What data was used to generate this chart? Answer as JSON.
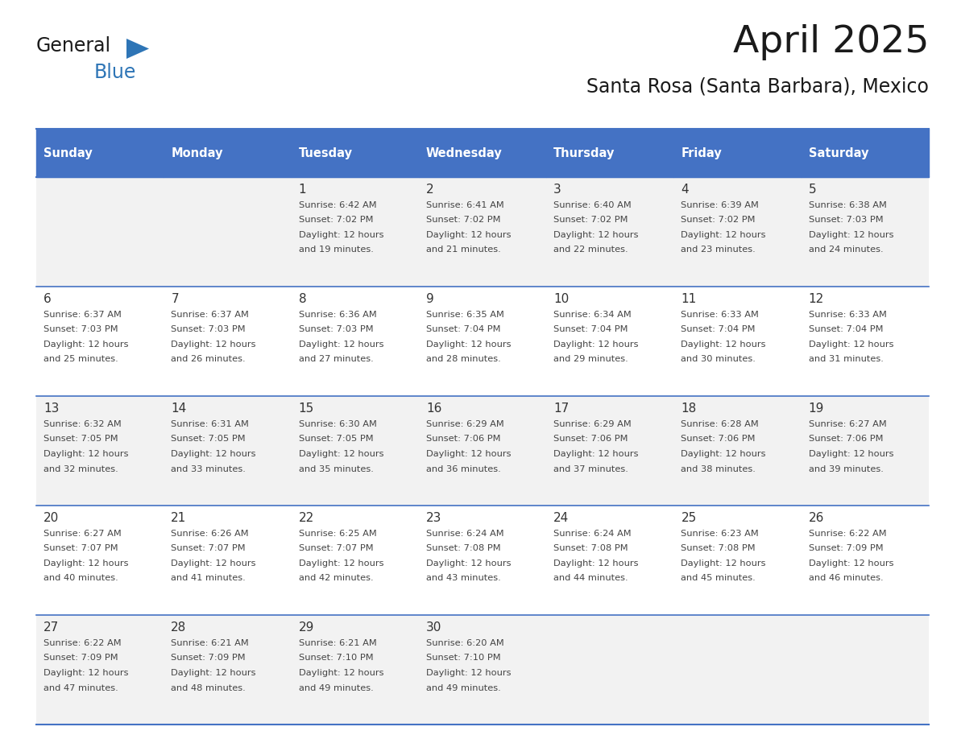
{
  "title": "April 2025",
  "subtitle": "Santa Rosa (Santa Barbara), Mexico",
  "header_bg_color": "#4472C4",
  "header_text_color": "#FFFFFF",
  "cell_bg_even": "#F2F2F2",
  "cell_bg_odd": "#FFFFFF",
  "day_number_color": "#333333",
  "cell_text_color": "#444444",
  "title_color": "#1a1a1a",
  "subtitle_color": "#1a1a1a",
  "grid_line_color": "#4472C4",
  "logo_general_color": "#1a1a1a",
  "logo_blue_color": "#2E75B6",
  "logo_triangle_color": "#2E75B6",
  "days_of_week": [
    "Sunday",
    "Monday",
    "Tuesday",
    "Wednesday",
    "Thursday",
    "Friday",
    "Saturday"
  ],
  "weeks": [
    [
      {
        "day": "",
        "sunrise": "",
        "sunset": "",
        "daylight_min": ""
      },
      {
        "day": "",
        "sunrise": "",
        "sunset": "",
        "daylight_min": ""
      },
      {
        "day": "1",
        "sunrise": "6:42 AM",
        "sunset": "7:02 PM",
        "daylight_min": "19 minutes."
      },
      {
        "day": "2",
        "sunrise": "6:41 AM",
        "sunset": "7:02 PM",
        "daylight_min": "21 minutes."
      },
      {
        "day": "3",
        "sunrise": "6:40 AM",
        "sunset": "7:02 PM",
        "daylight_min": "22 minutes."
      },
      {
        "day": "4",
        "sunrise": "6:39 AM",
        "sunset": "7:02 PM",
        "daylight_min": "23 minutes."
      },
      {
        "day": "5",
        "sunrise": "6:38 AM",
        "sunset": "7:03 PM",
        "daylight_min": "24 minutes."
      }
    ],
    [
      {
        "day": "6",
        "sunrise": "6:37 AM",
        "sunset": "7:03 PM",
        "daylight_min": "25 minutes."
      },
      {
        "day": "7",
        "sunrise": "6:37 AM",
        "sunset": "7:03 PM",
        "daylight_min": "26 minutes."
      },
      {
        "day": "8",
        "sunrise": "6:36 AM",
        "sunset": "7:03 PM",
        "daylight_min": "27 minutes."
      },
      {
        "day": "9",
        "sunrise": "6:35 AM",
        "sunset": "7:04 PM",
        "daylight_min": "28 minutes."
      },
      {
        "day": "10",
        "sunrise": "6:34 AM",
        "sunset": "7:04 PM",
        "daylight_min": "29 minutes."
      },
      {
        "day": "11",
        "sunrise": "6:33 AM",
        "sunset": "7:04 PM",
        "daylight_min": "30 minutes."
      },
      {
        "day": "12",
        "sunrise": "6:33 AM",
        "sunset": "7:04 PM",
        "daylight_min": "31 minutes."
      }
    ],
    [
      {
        "day": "13",
        "sunrise": "6:32 AM",
        "sunset": "7:05 PM",
        "daylight_min": "32 minutes."
      },
      {
        "day": "14",
        "sunrise": "6:31 AM",
        "sunset": "7:05 PM",
        "daylight_min": "33 minutes."
      },
      {
        "day": "15",
        "sunrise": "6:30 AM",
        "sunset": "7:05 PM",
        "daylight_min": "35 minutes."
      },
      {
        "day": "16",
        "sunrise": "6:29 AM",
        "sunset": "7:06 PM",
        "daylight_min": "36 minutes."
      },
      {
        "day": "17",
        "sunrise": "6:29 AM",
        "sunset": "7:06 PM",
        "daylight_min": "37 minutes."
      },
      {
        "day": "18",
        "sunrise": "6:28 AM",
        "sunset": "7:06 PM",
        "daylight_min": "38 minutes."
      },
      {
        "day": "19",
        "sunrise": "6:27 AM",
        "sunset": "7:06 PM",
        "daylight_min": "39 minutes."
      }
    ],
    [
      {
        "day": "20",
        "sunrise": "6:27 AM",
        "sunset": "7:07 PM",
        "daylight_min": "40 minutes."
      },
      {
        "day": "21",
        "sunrise": "6:26 AM",
        "sunset": "7:07 PM",
        "daylight_min": "41 minutes."
      },
      {
        "day": "22",
        "sunrise": "6:25 AM",
        "sunset": "7:07 PM",
        "daylight_min": "42 minutes."
      },
      {
        "day": "23",
        "sunrise": "6:24 AM",
        "sunset": "7:08 PM",
        "daylight_min": "43 minutes."
      },
      {
        "day": "24",
        "sunrise": "6:24 AM",
        "sunset": "7:08 PM",
        "daylight_min": "44 minutes."
      },
      {
        "day": "25",
        "sunrise": "6:23 AM",
        "sunset": "7:08 PM",
        "daylight_min": "45 minutes."
      },
      {
        "day": "26",
        "sunrise": "6:22 AM",
        "sunset": "7:09 PM",
        "daylight_min": "46 minutes."
      }
    ],
    [
      {
        "day": "27",
        "sunrise": "6:22 AM",
        "sunset": "7:09 PM",
        "daylight_min": "47 minutes."
      },
      {
        "day": "28",
        "sunrise": "6:21 AM",
        "sunset": "7:09 PM",
        "daylight_min": "48 minutes."
      },
      {
        "day": "29",
        "sunrise": "6:21 AM",
        "sunset": "7:10 PM",
        "daylight_min": "49 minutes."
      },
      {
        "day": "30",
        "sunrise": "6:20 AM",
        "sunset": "7:10 PM",
        "daylight_min": "49 minutes."
      },
      {
        "day": "",
        "sunrise": "",
        "sunset": "",
        "daylight_min": ""
      },
      {
        "day": "",
        "sunrise": "",
        "sunset": "",
        "daylight_min": ""
      },
      {
        "day": "",
        "sunrise": "",
        "sunset": "",
        "daylight_min": ""
      }
    ]
  ]
}
